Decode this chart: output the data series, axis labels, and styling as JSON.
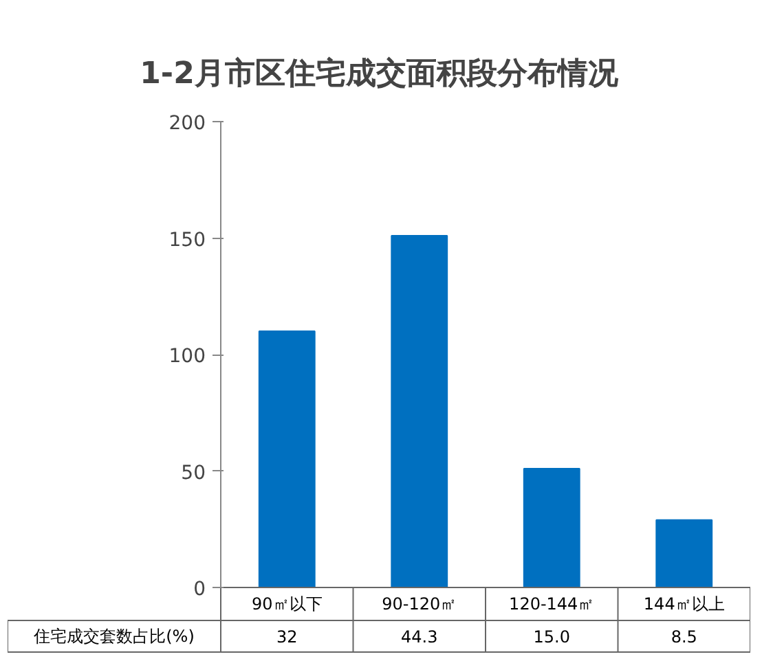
{
  "chart_data": {
    "type": "bar",
    "title": "1-2月市区住宅成交面积段分布情况",
    "categories": [
      "90㎡以下",
      "90-120㎡",
      "120-144㎡",
      "144㎡以上"
    ],
    "values": [
      110,
      151,
      51,
      29
    ],
    "color": "#0070c0",
    "ylim": [
      0,
      200
    ],
    "yticks": [
      0,
      50,
      100,
      150,
      200
    ],
    "grid": false,
    "annotations": [
      "住宅成交套数占比(%)",
      "32",
      "44.3",
      "15.0",
      "8.5"
    ]
  }
}
